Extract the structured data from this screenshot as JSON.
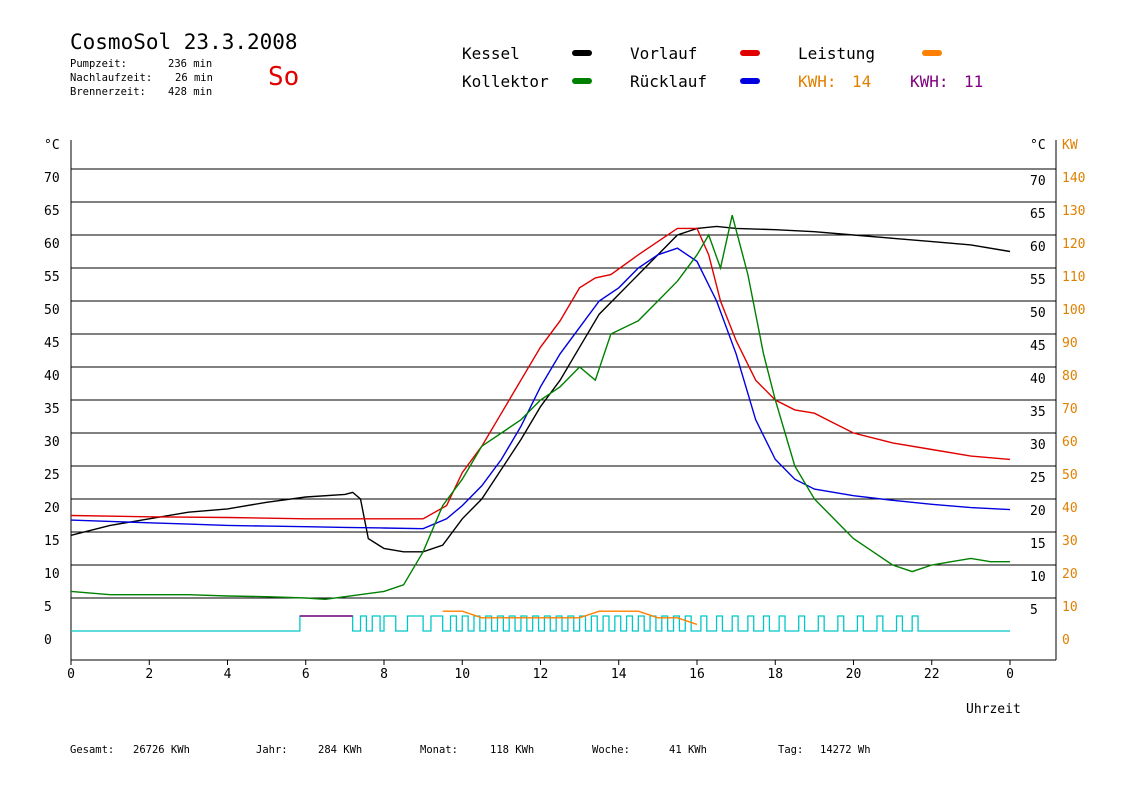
{
  "header": {
    "title": "CosmoSol 23.3.2008",
    "day": "So",
    "stats": [
      {
        "label": "Pumpzeit:",
        "value": "236 min"
      },
      {
        "label": "Nachlaufzeit:",
        "value": "26 min"
      },
      {
        "label": "Brennerzeit:",
        "value": "428 min"
      }
    ]
  },
  "legend": [
    {
      "name": "Kessel",
      "color": "#000000"
    },
    {
      "name": "Kollektor",
      "color": "#008000"
    },
    {
      "name": "Vorlauf",
      "color": "#e00000"
    },
    {
      "name": "Rücklauf",
      "color": "#0000e0"
    },
    {
      "name": "Leistung",
      "color": "#ff8000"
    }
  ],
  "kwh": [
    {
      "label": "KWH:",
      "value": "14",
      "color": "#e08000"
    },
    {
      "label": "KWH:",
      "value": "11",
      "color": "#800080"
    }
  ],
  "footer": [
    {
      "label": "Gesamt:",
      "value": "26726 KWh"
    },
    {
      "label": "Jahr:",
      "value": "284 KWh"
    },
    {
      "label": "Monat:",
      "value": "118 KWh"
    },
    {
      "label": "Woche:",
      "value": "41 KWh"
    },
    {
      "label": "Tag:",
      "value": "14272 Wh"
    }
  ],
  "chart_data": {
    "type": "line",
    "xlabel": "Uhrzeit",
    "ylabel": "°C",
    "y2label": "KW",
    "xlim": [
      0,
      24
    ],
    "ylim": [
      0,
      70
    ],
    "y2lim": [
      0,
      140
    ],
    "x_ticks": [
      "0",
      "2",
      "4",
      "6",
      "8",
      "10",
      "12",
      "14",
      "16",
      "18",
      "20",
      "22",
      "0"
    ],
    "y_ticks_left": [
      0,
      5,
      10,
      15,
      20,
      25,
      30,
      35,
      40,
      45,
      50,
      55,
      60,
      65,
      70
    ],
    "y_ticks_right": [
      5,
      10,
      15,
      20,
      25,
      30,
      35,
      40,
      45,
      50,
      55,
      60,
      65,
      70
    ],
    "y2_ticks": [
      0,
      10,
      20,
      30,
      40,
      50,
      60,
      70,
      80,
      90,
      100,
      110,
      120,
      130,
      140
    ],
    "grid": true,
    "series": [
      {
        "name": "Kessel",
        "color": "#000000",
        "x": [
          0,
          1,
          2,
          3,
          4,
          5,
          6,
          7,
          7.2,
          7.4,
          7.6,
          8,
          8.5,
          9,
          9.5,
          10,
          10.5,
          11,
          11.5,
          12,
          12.5,
          13,
          13.5,
          14,
          14.5,
          15,
          15.5,
          16,
          16.5,
          17,
          18,
          19,
          20,
          21,
          22,
          23,
          24
        ],
        "y": [
          14.5,
          16,
          17,
          18,
          18.5,
          19.5,
          20.3,
          20.7,
          21,
          20,
          14,
          12.5,
          12,
          12,
          13,
          17,
          20,
          24.5,
          29,
          34,
          38,
          43,
          48,
          51,
          54,
          57,
          60,
          61,
          61.3,
          61,
          60.8,
          60.5,
          60,
          59.5,
          59,
          58.5,
          57.5
        ]
      },
      {
        "name": "Vorlauf",
        "color": "#e00000",
        "x": [
          0,
          2,
          4,
          6,
          8,
          9,
          9.6,
          10,
          10.5,
          11,
          11.5,
          12,
          12.5,
          13,
          13.4,
          13.8,
          14.5,
          15,
          15.5,
          16,
          16.3,
          16.6,
          17,
          17.5,
          18,
          18.5,
          19,
          19.5,
          20,
          21,
          22,
          23,
          24
        ],
        "y": [
          17.5,
          17.3,
          17.2,
          17,
          17,
          17,
          19,
          24,
          28,
          33,
          38,
          43,
          47,
          52,
          53.5,
          54,
          57,
          59,
          61,
          61,
          57,
          50,
          44,
          38,
          35,
          33.5,
          33,
          31.5,
          30,
          28.5,
          27.5,
          26.5,
          26
        ]
      },
      {
        "name": "Rücklauf",
        "color": "#0000e0",
        "x": [
          0,
          1,
          2,
          3,
          4,
          5,
          6,
          7,
          8,
          9,
          9.6,
          10,
          10.5,
          11,
          11.5,
          12,
          12.5,
          13,
          13.5,
          14,
          14.5,
          15,
          15.5,
          16,
          16.5,
          17,
          17.5,
          18,
          18.5,
          19,
          20,
          21,
          22,
          23,
          24
        ],
        "y": [
          16.8,
          16.6,
          16.4,
          16.2,
          16,
          15.9,
          15.8,
          15.7,
          15.6,
          15.5,
          17,
          19,
          22,
          26,
          31,
          37,
          42,
          46,
          50,
          52,
          55,
          57,
          58,
          56,
          50,
          42,
          32,
          26,
          23,
          21.5,
          20.5,
          19.8,
          19.2,
          18.7,
          18.4
        ]
      },
      {
        "name": "Kollektor",
        "color": "#008000",
        "x": [
          0,
          1,
          2,
          3,
          4,
          5,
          6,
          6.5,
          7,
          8,
          8.5,
          9,
          9.5,
          10,
          10.5,
          11,
          11.5,
          12,
          12.5,
          13,
          13.4,
          13.8,
          14.5,
          15,
          15.5,
          16,
          16.3,
          16.6,
          16.9,
          17.3,
          17.7,
          18,
          18.5,
          19,
          19.5,
          20,
          20.5,
          21,
          21.5,
          22,
          22.5,
          23,
          23.5,
          24
        ],
        "y": [
          6,
          5.5,
          5.5,
          5.5,
          5.3,
          5.2,
          5,
          4.8,
          5.2,
          6,
          7,
          12,
          19,
          23,
          28,
          30,
          32,
          35,
          37,
          40,
          38,
          45,
          47,
          50,
          53,
          57,
          60,
          55,
          63,
          54,
          42,
          35,
          25,
          20,
          17,
          14,
          12,
          10,
          9,
          10,
          10.5,
          11,
          10.5,
          10.5
        ]
      },
      {
        "name": "Leistung",
        "color": "#ff8000",
        "x": [
          9.5,
          10,
          10.5,
          11,
          11.5,
          12,
          12.5,
          13,
          13.5,
          14,
          14.5,
          15,
          15.5,
          16
        ],
        "y": [
          3,
          3,
          2,
          2,
          2,
          2,
          2,
          2,
          3,
          3,
          3,
          2,
          2,
          1
        ]
      }
    ],
    "pump": {
      "color": "#00c8c8",
      "on": [
        [
          5.85,
          7.2
        ],
        [
          7.4,
          7.55
        ],
        [
          7.7,
          7.9
        ],
        [
          8.0,
          8.3
        ],
        [
          8.6,
          9.0
        ],
        [
          9.2,
          9.5
        ],
        [
          9.7,
          9.85
        ],
        [
          10.0,
          10.15
        ],
        [
          10.3,
          10.45
        ],
        [
          10.6,
          10.75
        ],
        [
          10.9,
          11.05
        ],
        [
          11.2,
          11.35
        ],
        [
          11.5,
          11.65
        ],
        [
          11.8,
          11.95
        ],
        [
          12.1,
          12.25
        ],
        [
          12.4,
          12.55
        ],
        [
          12.7,
          12.85
        ],
        [
          13.0,
          13.15
        ],
        [
          13.3,
          13.45
        ],
        [
          13.6,
          13.75
        ],
        [
          13.9,
          14.05
        ],
        [
          14.2,
          14.35
        ],
        [
          14.5,
          14.65
        ],
        [
          14.8,
          14.95
        ],
        [
          15.1,
          15.25
        ],
        [
          15.4,
          15.55
        ],
        [
          15.7,
          15.85
        ],
        [
          16.1,
          16.25
        ],
        [
          16.5,
          16.65
        ],
        [
          16.9,
          17.05
        ],
        [
          17.3,
          17.45
        ],
        [
          17.7,
          17.85
        ],
        [
          18.1,
          18.25
        ],
        [
          18.6,
          18.75
        ],
        [
          19.1,
          19.25
        ],
        [
          19.6,
          19.75
        ],
        [
          20.1,
          20.25
        ],
        [
          20.6,
          20.75
        ],
        [
          21.1,
          21.25
        ],
        [
          21.5,
          21.65
        ]
      ]
    },
    "brenner": {
      "color": "#800080",
      "on": [
        [
          5.85,
          7.2
        ]
      ]
    }
  }
}
